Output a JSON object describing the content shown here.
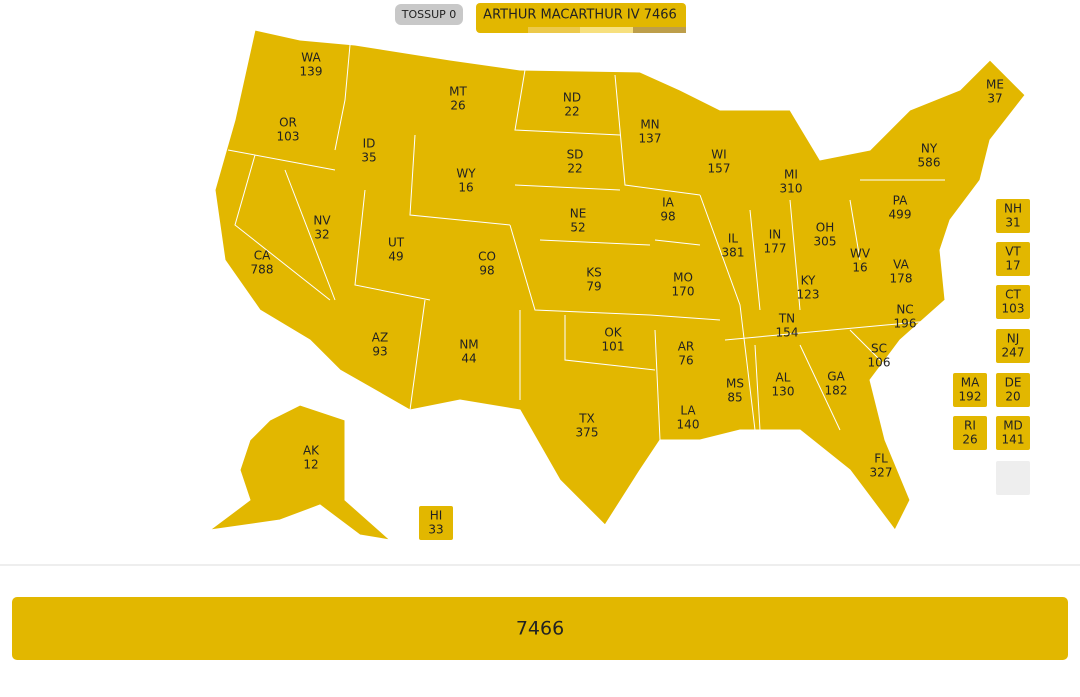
{
  "header": {
    "tossup": "TOSSUP 0",
    "candidate": "ARTHUR MACARTHUR IV 7466"
  },
  "states": [
    {
      "abbr": "WA",
      "value": "139"
    },
    {
      "abbr": "OR",
      "value": "103"
    },
    {
      "abbr": "CA",
      "value": "788"
    },
    {
      "abbr": "NV",
      "value": "32"
    },
    {
      "abbr": "ID",
      "value": "35"
    },
    {
      "abbr": "MT",
      "value": "26"
    },
    {
      "abbr": "WY",
      "value": "16"
    },
    {
      "abbr": "UT",
      "value": "49"
    },
    {
      "abbr": "AZ",
      "value": "93"
    },
    {
      "abbr": "CO",
      "value": "98"
    },
    {
      "abbr": "NM",
      "value": "44"
    },
    {
      "abbr": "ND",
      "value": "22"
    },
    {
      "abbr": "SD",
      "value": "22"
    },
    {
      "abbr": "NE",
      "value": "52"
    },
    {
      "abbr": "KS",
      "value": "79"
    },
    {
      "abbr": "OK",
      "value": "101"
    },
    {
      "abbr": "TX",
      "value": "375"
    },
    {
      "abbr": "MN",
      "value": "137"
    },
    {
      "abbr": "IA",
      "value": "98"
    },
    {
      "abbr": "MO",
      "value": "170"
    },
    {
      "abbr": "AR",
      "value": "76"
    },
    {
      "abbr": "LA",
      "value": "140"
    },
    {
      "abbr": "WI",
      "value": "157"
    },
    {
      "abbr": "IL",
      "value": "381"
    },
    {
      "abbr": "MI",
      "value": "310"
    },
    {
      "abbr": "IN",
      "value": "177"
    },
    {
      "abbr": "OH",
      "value": "305"
    },
    {
      "abbr": "KY",
      "value": "123"
    },
    {
      "abbr": "TN",
      "value": "154"
    },
    {
      "abbr": "MS",
      "value": "85"
    },
    {
      "abbr": "AL",
      "value": "130"
    },
    {
      "abbr": "GA",
      "value": "182"
    },
    {
      "abbr": "FL",
      "value": "327"
    },
    {
      "abbr": "SC",
      "value": "106"
    },
    {
      "abbr": "NC",
      "value": "196"
    },
    {
      "abbr": "VA",
      "value": "178"
    },
    {
      "abbr": "WV",
      "value": "16"
    },
    {
      "abbr": "PA",
      "value": "499"
    },
    {
      "abbr": "NY",
      "value": "586"
    },
    {
      "abbr": "ME",
      "value": "37"
    },
    {
      "abbr": "AK",
      "value": "12"
    }
  ],
  "boxes": [
    {
      "abbr": "HI",
      "value": "33"
    },
    {
      "abbr": "NH",
      "value": "31"
    },
    {
      "abbr": "VT",
      "value": "17"
    },
    {
      "abbr": "CT",
      "value": "103"
    },
    {
      "abbr": "NJ",
      "value": "247"
    },
    {
      "abbr": "MA",
      "value": "192"
    },
    {
      "abbr": "DE",
      "value": "20"
    },
    {
      "abbr": "RI",
      "value": "26"
    },
    {
      "abbr": "MD",
      "value": "141"
    }
  ],
  "total": "7466"
}
